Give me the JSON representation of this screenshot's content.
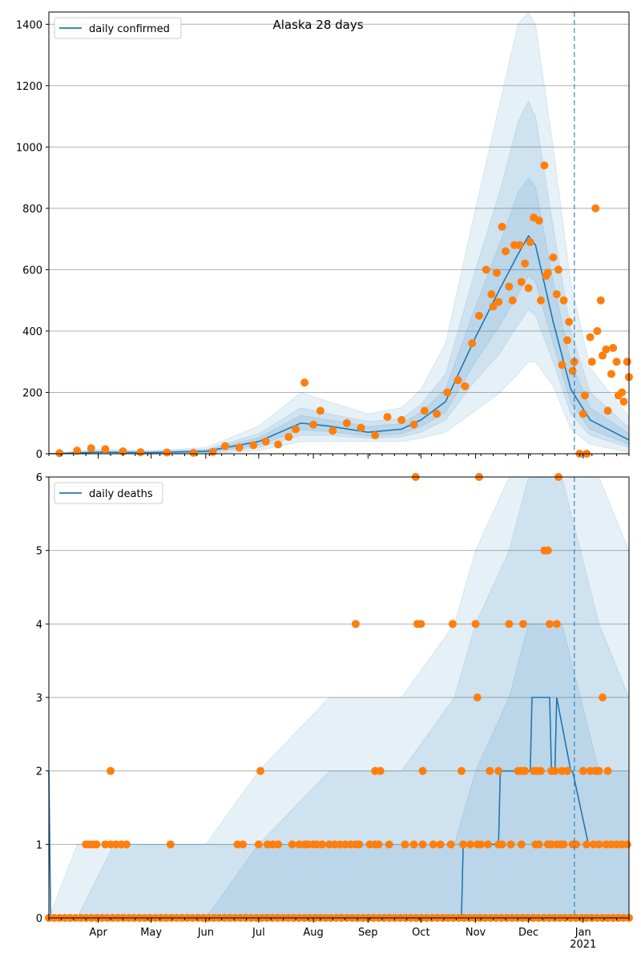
{
  "colors": {
    "line": "#1f77b4",
    "points": "#ff7f0e",
    "band": "#1f77b4",
    "grid": "#b0b0b0",
    "marker": "#1f77b4"
  },
  "x_axis": {
    "month_labels": [
      "Apr",
      "May",
      "Jun",
      "Jul",
      "Aug",
      "Sep",
      "Oct",
      "Nov",
      "Dec",
      "Jan"
    ],
    "month_dates": [
      "2020-04-01",
      "2020-05-01",
      "2020-06-01",
      "2020-07-01",
      "2020-08-01",
      "2020-09-01",
      "2020-10-01",
      "2020-11-01",
      "2020-12-01",
      "2021-01-01"
    ],
    "year_label": "2021",
    "range": [
      "2020-03-04",
      "2021-01-27"
    ],
    "vline_date": "2020-12-27"
  },
  "chart_data": [
    {
      "type": "line",
      "title": "Alaska 28 days",
      "legend": "daily confirmed",
      "legend_position": "top-left",
      "grid": "y",
      "ylim": [
        0,
        1440
      ],
      "yticks": [
        "0",
        "200",
        "400",
        "600",
        "800",
        "1000",
        "1200",
        "1400"
      ],
      "series": [
        {
          "name": "daily confirmed",
          "x": [
            "2020-03-04",
            "2020-04-01",
            "2020-05-01",
            "2020-06-01",
            "2020-07-01",
            "2020-07-25",
            "2020-08-10",
            "2020-09-01",
            "2020-09-20",
            "2020-10-01",
            "2020-10-15",
            "2020-11-01",
            "2020-11-15",
            "2020-11-25",
            "2020-12-01",
            "2020-12-05",
            "2020-12-15",
            "2020-12-25",
            "2021-01-05",
            "2021-01-27"
          ],
          "y": [
            0,
            5,
            4,
            8,
            40,
            100,
            90,
            70,
            80,
            110,
            170,
            380,
            540,
            650,
            710,
            680,
            430,
            210,
            110,
            45
          ]
        }
      ],
      "bands": [
        {
          "x": [
            "2020-03-04",
            "2020-04-01",
            "2020-05-01",
            "2020-06-01",
            "2020-07-01",
            "2020-07-25",
            "2020-08-10",
            "2020-09-01",
            "2020-09-20",
            "2020-10-01",
            "2020-10-15",
            "2020-11-01",
            "2020-11-15",
            "2020-11-25",
            "2020-12-01",
            "2020-12-05",
            "2020-12-15",
            "2020-12-25",
            "2021-01-05",
            "2021-01-27"
          ],
          "low": [
            0,
            0,
            0,
            0,
            10,
            40,
            40,
            40,
            40,
            50,
            70,
            140,
            200,
            260,
            300,
            300,
            220,
            80,
            30,
            5
          ],
          "high": [
            0,
            15,
            10,
            20,
            90,
            200,
            170,
            130,
            150,
            210,
            360,
            800,
            1150,
            1400,
            1440,
            1400,
            1000,
            560,
            280,
            120
          ]
        },
        {
          "x": [
            "2020-03-04",
            "2020-04-01",
            "2020-05-01",
            "2020-06-01",
            "2020-07-01",
            "2020-07-25",
            "2020-08-10",
            "2020-09-01",
            "2020-09-20",
            "2020-10-01",
            "2020-10-15",
            "2020-11-01",
            "2020-11-15",
            "2020-11-25",
            "2020-12-01",
            "2020-12-05",
            "2020-12-15",
            "2020-12-25",
            "2021-01-05",
            "2021-01-27"
          ],
          "low": [
            0,
            2,
            1,
            3,
            20,
            60,
            60,
            50,
            55,
            70,
            110,
            240,
            330,
            420,
            470,
            450,
            300,
            130,
            60,
            20
          ],
          "high": [
            0,
            10,
            8,
            14,
            65,
            150,
            130,
            105,
            115,
            160,
            260,
            600,
            860,
            1080,
            1150,
            1100,
            740,
            400,
            200,
            85
          ]
        },
        {
          "x": [
            "2020-03-04",
            "2020-04-01",
            "2020-05-01",
            "2020-06-01",
            "2020-07-01",
            "2020-07-25",
            "2020-08-10",
            "2020-09-01",
            "2020-09-20",
            "2020-10-01",
            "2020-10-15",
            "2020-11-01",
            "2020-11-15",
            "2020-11-25",
            "2020-12-01",
            "2020-12-05",
            "2020-12-15",
            "2020-12-25",
            "2021-01-05",
            "2021-01-27"
          ],
          "low": [
            0,
            3,
            2,
            5,
            28,
            78,
            72,
            58,
            65,
            88,
            135,
            300,
            420,
            520,
            580,
            560,
            360,
            165,
            80,
            30
          ],
          "high": [
            0,
            7,
            6,
            11,
            52,
            125,
            110,
            88,
            98,
            135,
            210,
            480,
            690,
            850,
            900,
            870,
            560,
            300,
            150,
            65
          ]
        }
      ],
      "points": {
        "x": [
          "2020-03-10",
          "2020-03-20",
          "2020-03-28",
          "2020-04-05",
          "2020-04-15",
          "2020-04-25",
          "2020-05-10",
          "2020-05-25",
          "2020-06-05",
          "2020-06-12",
          "2020-06-20",
          "2020-06-28",
          "2020-07-05",
          "2020-07-12",
          "2020-07-18",
          "2020-07-22",
          "2020-07-27",
          "2020-08-01",
          "2020-08-05",
          "2020-08-12",
          "2020-08-20",
          "2020-08-28",
          "2020-09-05",
          "2020-09-12",
          "2020-09-20",
          "2020-09-27",
          "2020-10-03",
          "2020-10-10",
          "2020-10-16",
          "2020-10-22",
          "2020-10-26",
          "2020-10-30",
          "2020-11-03",
          "2020-11-07",
          "2020-11-10",
          "2020-11-13",
          "2020-11-16",
          "2020-11-20",
          "2020-11-23",
          "2020-11-26",
          "2020-11-29",
          "2020-12-02",
          "2020-12-04",
          "2020-12-07",
          "2020-12-10",
          "2020-12-12",
          "2020-12-15",
          "2020-12-18",
          "2020-12-21",
          "2020-12-24",
          "2020-12-27",
          "2020-12-30",
          "2021-01-02",
          "2021-01-05",
          "2021-01-08",
          "2021-01-11",
          "2021-01-14",
          "2021-01-17",
          "2021-01-20",
          "2021-01-23",
          "2021-01-26"
        ],
        "y": [
          2,
          10,
          18,
          15,
          8,
          5,
          4,
          3,
          6,
          25,
          20,
          28,
          40,
          30,
          55,
          80,
          232,
          95,
          140,
          75,
          100,
          85,
          60,
          120,
          110,
          95,
          140,
          130,
          200,
          240,
          220,
          360,
          450,
          600,
          520,
          590,
          740,
          545,
          680,
          680,
          620,
          690,
          770,
          760,
          940,
          590,
          640,
          600,
          500,
          430,
          300,
          0,
          190,
          380,
          800,
          500,
          340,
          260,
          300,
          200,
          300
        ],
        "extra_x": [
          "2020-11-11",
          "2020-11-14",
          "2020-11-18",
          "2020-11-22",
          "2020-11-27",
          "2020-12-01",
          "2020-12-08",
          "2020-12-11",
          "2020-12-17",
          "2020-12-20",
          "2020-12-23",
          "2020-12-26",
          "2021-01-01",
          "2021-01-03",
          "2021-01-06",
          "2021-01-09",
          "2021-01-12",
          "2021-01-15",
          "2021-01-18",
          "2021-01-21",
          "2021-01-24",
          "2021-01-27"
        ],
        "extra_y": [
          480,
          495,
          660,
          500,
          560,
          540,
          500,
          580,
          520,
          290,
          370,
          270,
          130,
          0,
          300,
          400,
          320,
          140,
          345,
          190,
          170,
          250
        ]
      }
    },
    {
      "type": "line",
      "legend": "daily deaths",
      "legend_position": "top-left",
      "grid": "y",
      "ylim": [
        0,
        6
      ],
      "yticks": [
        "0",
        "1",
        "2",
        "3",
        "4",
        "5",
        "6"
      ],
      "series": [
        {
          "name": "daily deaths",
          "x": [
            "2020-03-04",
            "2020-03-05",
            "2020-10-24",
            "2020-10-25",
            "2020-11-14",
            "2020-11-15",
            "2020-12-02",
            "2020-12-03",
            "2020-12-13",
            "2020-12-14",
            "2020-12-16",
            "2020-12-17",
            "2020-12-25",
            "2020-12-26",
            "2021-01-04",
            "2021-01-05",
            "2021-01-27"
          ],
          "y": [
            2,
            0,
            0,
            1,
            1,
            2,
            2,
            3,
            3,
            2,
            2,
            3,
            2,
            2,
            1,
            1,
            1
          ]
        }
      ],
      "bands": [
        {
          "x": [
            "2020-03-04",
            "2020-03-20",
            "2020-04-10",
            "2020-06-01",
            "2020-07-01",
            "2020-08-10",
            "2020-09-20",
            "2020-10-20",
            "2020-11-01",
            "2020-11-20",
            "2020-12-01",
            "2020-12-20",
            "2021-01-10",
            "2021-01-27"
          ],
          "low": [
            0,
            0,
            0,
            0,
            0,
            0,
            0,
            0,
            0,
            0,
            0,
            0,
            0,
            0
          ],
          "high": [
            0,
            1,
            1,
            1,
            2,
            3,
            3,
            4,
            5,
            6,
            6,
            6,
            6,
            5
          ]
        },
        {
          "x": [
            "2020-03-04",
            "2020-03-20",
            "2020-04-10",
            "2020-06-01",
            "2020-07-01",
            "2020-08-10",
            "2020-09-20",
            "2020-10-20",
            "2020-11-01",
            "2020-11-20",
            "2020-12-01",
            "2020-12-20",
            "2021-01-10",
            "2021-01-27"
          ],
          "low": [
            0,
            0,
            0,
            0,
            0,
            0,
            0,
            0,
            0,
            0,
            0,
            0,
            0,
            0
          ],
          "high": [
            0,
            0,
            1,
            1,
            1,
            2,
            2,
            3,
            4,
            5,
            6,
            6,
            4,
            3
          ]
        },
        {
          "x": [
            "2020-03-04",
            "2020-03-20",
            "2020-04-10",
            "2020-06-01",
            "2020-07-01",
            "2020-08-10",
            "2020-09-20",
            "2020-10-20",
            "2020-11-01",
            "2020-11-20",
            "2020-12-01",
            "2020-12-20",
            "2021-01-10",
            "2021-01-27"
          ],
          "low": [
            0,
            0,
            0,
            0,
            0,
            0,
            0,
            0,
            0,
            0,
            0,
            0,
            0,
            0
          ],
          "high": [
            0,
            0,
            0,
            0,
            1,
            1,
            1,
            1,
            2,
            3,
            4,
            4,
            2,
            2
          ]
        }
      ],
      "points": {
        "x": [
          "2020-03-25",
          "2020-03-27",
          "2020-03-29",
          "2020-03-31",
          "2020-04-05",
          "2020-04-08",
          "2020-04-11",
          "2020-04-14",
          "2020-04-17",
          "2020-05-12",
          "2020-06-19",
          "2020-06-22",
          "2020-07-01",
          "2020-07-06",
          "2020-07-09",
          "2020-07-12",
          "2020-07-20",
          "2020-07-24",
          "2020-07-27",
          "2020-07-29",
          "2020-08-01",
          "2020-08-03",
          "2020-08-06",
          "2020-08-10",
          "2020-08-13",
          "2020-08-16",
          "2020-08-19",
          "2020-08-22",
          "2020-08-25",
          "2020-08-27",
          "2020-09-02",
          "2020-09-05",
          "2020-09-07",
          "2020-09-13",
          "2020-09-22",
          "2020-09-27",
          "2020-10-02",
          "2020-10-08",
          "2020-10-12",
          "2020-10-18",
          "2020-10-25",
          "2020-10-29",
          "2020-11-02",
          "2020-11-04",
          "2020-11-08",
          "2020-11-14",
          "2020-11-16",
          "2020-11-21",
          "2020-11-27",
          "2020-12-05",
          "2020-12-07",
          "2020-12-12",
          "2020-12-14",
          "2020-12-17",
          "2020-12-19",
          "2020-12-21",
          "2020-12-26",
          "2020-12-28",
          "2021-01-03",
          "2021-01-07",
          "2021-01-10",
          "2021-01-14",
          "2021-01-17",
          "2021-01-20",
          "2021-01-23",
          "2021-01-26",
          "2020-04-08",
          "2020-07-02",
          "2020-08-25",
          "2020-09-05",
          "2020-09-08",
          "2020-10-02",
          "2020-10-01",
          "2020-10-24",
          "2020-11-09",
          "2020-11-14",
          "2020-11-25",
          "2020-11-27",
          "2020-11-29",
          "2020-12-04",
          "2020-12-06",
          "2020-12-08",
          "2020-12-14",
          "2020-12-16",
          "2020-12-20",
          "2020-12-23",
          "2021-01-01",
          "2021-01-05",
          "2021-01-08",
          "2021-01-10",
          "2021-01-15",
          "2020-09-29",
          "2020-10-19",
          "2020-11-01",
          "2020-11-20",
          "2020-11-28",
          "2020-12-13",
          "2020-12-17",
          "2020-12-10",
          "2020-12-12",
          "2020-09-28",
          "2020-11-03",
          "2020-12-18",
          "2020-11-02",
          "2021-01-12"
        ],
        "y": [
          1,
          1,
          1,
          1,
          1,
          1,
          1,
          1,
          1,
          1,
          1,
          1,
          1,
          1,
          1,
          1,
          1,
          1,
          1,
          1,
          1,
          1,
          1,
          1,
          1,
          1,
          1,
          1,
          1,
          1,
          1,
          1,
          1,
          1,
          1,
          1,
          1,
          1,
          1,
          1,
          1,
          1,
          1,
          1,
          1,
          1,
          1,
          1,
          1,
          1,
          1,
          1,
          1,
          1,
          1,
          1,
          1,
          1,
          1,
          1,
          1,
          1,
          1,
          1,
          1,
          1,
          2,
          2,
          4,
          2,
          2,
          2,
          4,
          2,
          2,
          2,
          2,
          2,
          2,
          2,
          2,
          2,
          2,
          2,
          2,
          2,
          2,
          2,
          2,
          2,
          2,
          4,
          4,
          4,
          4,
          4,
          4,
          4,
          5,
          5,
          6,
          6,
          6,
          3,
          3
        ],
        "zero_count": 110
      }
    }
  ]
}
